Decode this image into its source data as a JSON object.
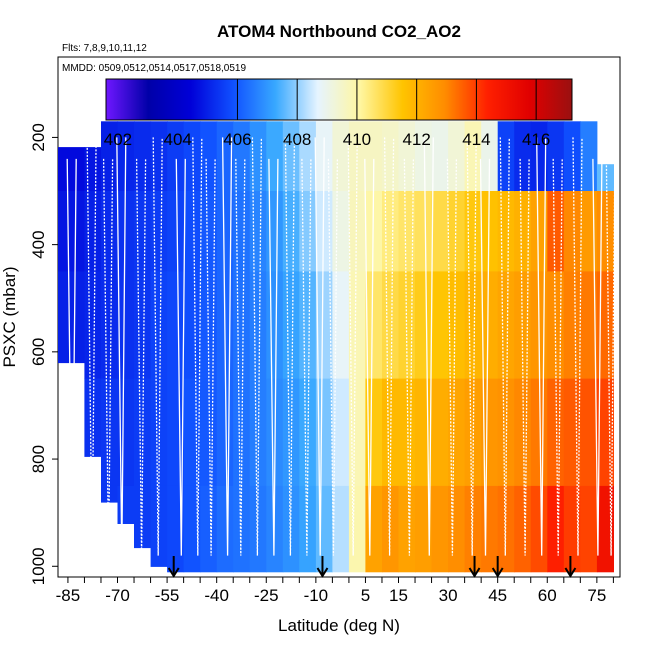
{
  "chart_data": {
    "type": "heatmap",
    "title": "ATOM4 Northbound CO2_AO2",
    "note_flights": "Flts: 7,8,9,10,11,12",
    "note_dates": "MMDD: 0509,0512,0514,0517,0518,0519",
    "xlabel": "Latitude (deg N)",
    "ylabel": "PSXC (mbar)",
    "xlim": [
      -88,
      82
    ],
    "ylim": [
      1020,
      50
    ],
    "x_ticks": [
      -85,
      -70,
      -55,
      -40,
      -25,
      -10,
      5,
      15,
      30,
      45,
      60,
      75
    ],
    "y_ticks": [
      200,
      400,
      600,
      800,
      1000
    ],
    "colorbar": {
      "min": 401.6,
      "max": 417.2,
      "ticks": [
        402,
        404,
        406,
        408,
        410,
        412,
        414,
        416
      ],
      "lines": [
        406,
        408,
        410,
        412,
        414,
        416
      ],
      "colors": [
        "#6f17ff",
        "#0000a8",
        "#0000d8",
        "#1050ff",
        "#38a8ff",
        "#e6f4ff",
        "#fff6a0",
        "#ffc400",
        "#ff8c00",
        "#ff2000",
        "#e00000",
        "#9a1010"
      ]
    },
    "profile_columns": [
      {
        "lat_min": -88,
        "lat_max": -80,
        "p_top": 218,
        "p_bot": 620,
        "co2": [
          404.6,
          404.8,
          405.0,
          405.1,
          405.2
        ]
      },
      {
        "lat_min": -80,
        "lat_max": -75,
        "p_top": 218,
        "p_bot": 795,
        "co2": [
          404.8,
          405.0,
          405.1,
          405.3,
          405.2
        ]
      },
      {
        "lat_min": -75,
        "lat_max": -70,
        "p_top": 170,
        "p_bot": 880,
        "co2": [
          405.0,
          405.2,
          405.2,
          405.4,
          405.4
        ]
      },
      {
        "lat_min": -70,
        "lat_max": -65,
        "p_top": 170,
        "p_bot": 920,
        "co2": [
          405.1,
          405.3,
          405.3,
          405.4,
          405.5
        ]
      },
      {
        "lat_min": -65,
        "lat_max": -60,
        "p_top": 170,
        "p_bot": 965,
        "co2": [
          405.2,
          405.4,
          405.4,
          405.5,
          405.5
        ]
      },
      {
        "lat_min": -60,
        "lat_max": -55,
        "p_top": 170,
        "p_bot": 1000,
        "co2": [
          405.3,
          405.5,
          405.6,
          405.6,
          405.6
        ]
      },
      {
        "lat_min": -55,
        "lat_max": -50,
        "p_top": 170,
        "p_bot": 1010,
        "co2": [
          405.5,
          405.6,
          405.7,
          405.7,
          405.7
        ]
      },
      {
        "lat_min": -50,
        "lat_max": -45,
        "p_top": 170,
        "p_bot": 1010,
        "co2": [
          405.7,
          405.8,
          405.8,
          405.9,
          405.9
        ]
      },
      {
        "lat_min": -45,
        "lat_max": -40,
        "p_top": 170,
        "p_bot": 1010,
        "co2": [
          405.9,
          406.0,
          406.0,
          406.0,
          406.1
        ]
      },
      {
        "lat_min": -40,
        "lat_max": -35,
        "p_top": 170,
        "p_bot": 1010,
        "co2": [
          406.2,
          406.2,
          406.2,
          406.2,
          406.3
        ]
      },
      {
        "lat_min": -35,
        "lat_max": -30,
        "p_top": 170,
        "p_bot": 1010,
        "co2": [
          406.5,
          406.4,
          406.4,
          406.4,
          406.4
        ]
      },
      {
        "lat_min": -30,
        "lat_max": -25,
        "p_top": 170,
        "p_bot": 1010,
        "co2": [
          406.9,
          406.7,
          406.6,
          406.6,
          406.5
        ]
      },
      {
        "lat_min": -25,
        "lat_max": -20,
        "p_top": 170,
        "p_bot": 1010,
        "co2": [
          407.3,
          407.0,
          406.9,
          406.8,
          406.7
        ]
      },
      {
        "lat_min": -20,
        "lat_max": -15,
        "p_top": 170,
        "p_bot": 1010,
        "co2": [
          407.7,
          407.4,
          407.2,
          407.0,
          406.9
        ]
      },
      {
        "lat_min": -15,
        "lat_max": -10,
        "p_top": 170,
        "p_bot": 1010,
        "co2": [
          408.2,
          407.9,
          407.5,
          407.3,
          407.2
        ]
      },
      {
        "lat_min": -10,
        "lat_max": -5,
        "p_top": 170,
        "p_bot": 1010,
        "co2": [
          408.8,
          408.5,
          408.1,
          407.8,
          407.6
        ]
      },
      {
        "lat_min": -5,
        "lat_max": 0,
        "p_top": 170,
        "p_bot": 1010,
        "co2": [
          409.3,
          409.1,
          408.8,
          408.5,
          408.3
        ]
      },
      {
        "lat_min": 0,
        "lat_max": 5,
        "p_top": 170,
        "p_bot": 1010,
        "co2": [
          409.6,
          409.7,
          409.8,
          409.8,
          409.9
        ]
      },
      {
        "lat_min": 5,
        "lat_max": 10,
        "p_top": 170,
        "p_bot": 1010,
        "co2": [
          409.6,
          410.0,
          410.6,
          411.4,
          412.4
        ]
      },
      {
        "lat_min": 10,
        "lat_max": 15,
        "p_top": 170,
        "p_bot": 1010,
        "co2": [
          409.5,
          410.4,
          410.9,
          411.8,
          412.7
        ]
      },
      {
        "lat_min": 15,
        "lat_max": 20,
        "p_top": 170,
        "p_bot": 1010,
        "co2": [
          409.3,
          410.6,
          411.1,
          411.8,
          412.4
        ]
      },
      {
        "lat_min": 20,
        "lat_max": 25,
        "p_top": 170,
        "p_bot": 1010,
        "co2": [
          409.1,
          410.7,
          411.3,
          411.9,
          412.5
        ]
      },
      {
        "lat_min": 25,
        "lat_max": 30,
        "p_top": 170,
        "p_bot": 1010,
        "co2": [
          409.0,
          410.9,
          411.5,
          412.1,
          412.7
        ]
      },
      {
        "lat_min": 30,
        "lat_max": 35,
        "p_top": 170,
        "p_bot": 1010,
        "co2": [
          409.3,
          411.1,
          411.7,
          412.3,
          412.9
        ]
      },
      {
        "lat_min": 35,
        "lat_max": 40,
        "p_top": 170,
        "p_bot": 1010,
        "co2": [
          409.8,
          411.4,
          411.9,
          412.5,
          413.1
        ]
      },
      {
        "lat_min": 40,
        "lat_max": 45,
        "p_top": 170,
        "p_bot": 1010,
        "co2": [
          409.0,
          411.6,
          412.1,
          412.7,
          413.2
        ]
      },
      {
        "lat_min": 45,
        "lat_max": 50,
        "p_top": 170,
        "p_bot": 1010,
        "co2": [
          405.6,
          411.8,
          412.3,
          412.8,
          413.3
        ]
      },
      {
        "lat_min": 50,
        "lat_max": 55,
        "p_top": 170,
        "p_bot": 1010,
        "co2": [
          405.2,
          412.0,
          412.5,
          413.0,
          413.5
        ]
      },
      {
        "lat_min": 55,
        "lat_max": 60,
        "p_top": 170,
        "p_bot": 1010,
        "co2": [
          405.1,
          412.4,
          412.7,
          413.2,
          413.8
        ]
      },
      {
        "lat_min": 60,
        "lat_max": 65,
        "p_top": 170,
        "p_bot": 1010,
        "co2": [
          405.4,
          413.6,
          412.9,
          413.5,
          414.4
        ]
      },
      {
        "lat_min": 65,
        "lat_max": 70,
        "p_top": 170,
        "p_bot": 1010,
        "co2": [
          405.8,
          413.0,
          413.1,
          413.6,
          414.0
        ]
      },
      {
        "lat_min": 70,
        "lat_max": 75,
        "p_top": 170,
        "p_bot": 1010,
        "co2": [
          406.6,
          412.6,
          413.2,
          413.7,
          413.9
        ]
      },
      {
        "lat_min": 75,
        "lat_max": 80,
        "p_top": 250,
        "p_bot": 1010,
        "co2": [
          407.6,
          412.9,
          413.4,
          413.9,
          415.0
        ]
      }
    ],
    "profile_levels_mbar": [
      170,
      300,
      450,
      650,
      850,
      1010
    ],
    "dive_latitudes": [
      -84,
      -78,
      -73,
      -69,
      -63,
      -58,
      -51,
      -46,
      -42,
      -37,
      -33,
      -28,
      -23,
      -18,
      -13,
      -9,
      -5,
      1,
      6,
      12,
      18,
      24,
      31,
      37,
      41,
      47,
      53,
      58,
      63,
      69,
      75,
      79
    ],
    "arrows": [
      -53,
      -8,
      38,
      45,
      67
    ]
  }
}
